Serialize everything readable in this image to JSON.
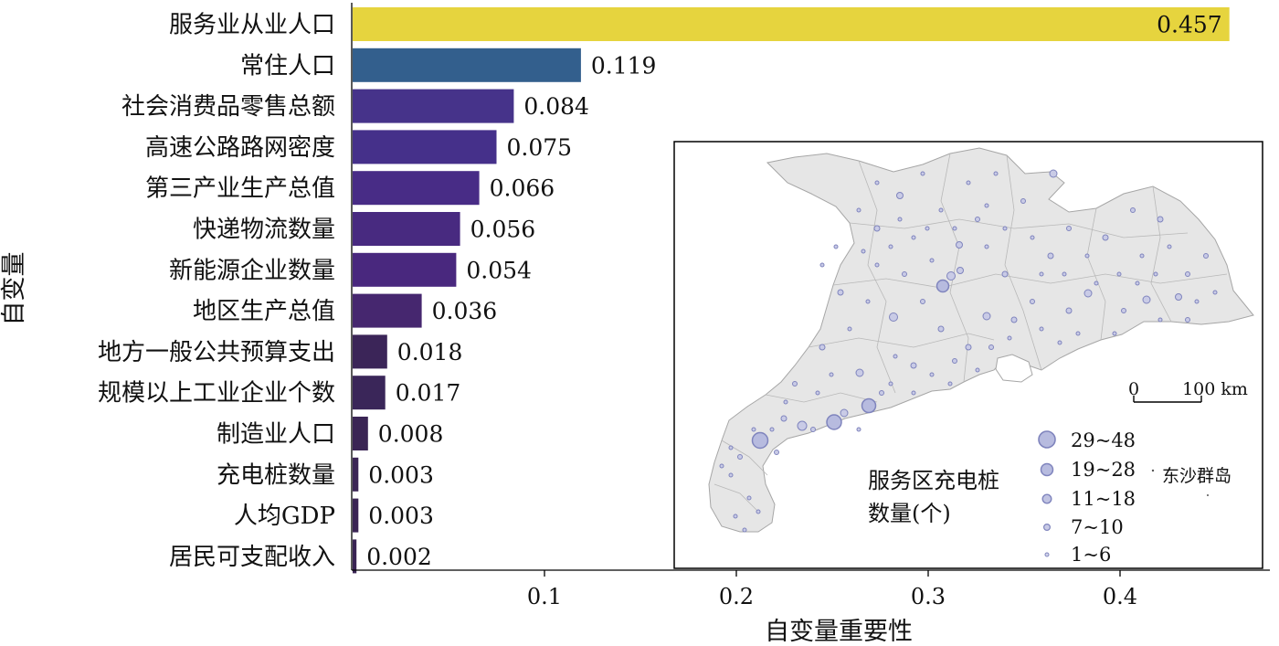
{
  "chart_data": {
    "type": "bar",
    "orientation": "horizontal",
    "xlabel": "自变量重要性",
    "ylabel": "自变量",
    "xlim": [
      0,
      0.47
    ],
    "xticks": [
      0.1,
      0.2,
      0.3,
      0.4
    ],
    "categories": [
      "服务业从业人口",
      "常住人口",
      "社会消费品零售总额",
      "高速公路路网密度",
      "第三产业生产总值",
      "快递物流数量",
      "新能源企业数量",
      "地区生产总值",
      "地方一般公共预算支出",
      "规模以上工业企业个数",
      "制造业人口",
      "充电桩数量",
      "人均GDP",
      "居民可支配收入"
    ],
    "values": [
      0.457,
      0.119,
      0.084,
      0.075,
      0.066,
      0.056,
      0.054,
      0.036,
      0.018,
      0.017,
      0.008,
      0.003,
      0.003,
      0.002
    ],
    "value_labels": [
      "0.457",
      "0.119",
      "0.084",
      "0.075",
      "0.066",
      "0.056",
      "0.054",
      "0.036",
      "0.018",
      "0.017",
      "0.008",
      "0.003",
      "0.003",
      "0.002"
    ],
    "colormap": "viridis"
  },
  "inset_map": {
    "legend_title_line1": "服务区充电桩",
    "legend_title_line2": "数量(个)",
    "legend_items": [
      "29~48",
      "19~28",
      "11~18",
      "7~10",
      "1~6"
    ],
    "scale_zero": "0",
    "scale_label": "100 km",
    "island_label": "东沙群岛",
    "land_color": "#e6e6e6",
    "marker_color": "#8f93c6"
  }
}
